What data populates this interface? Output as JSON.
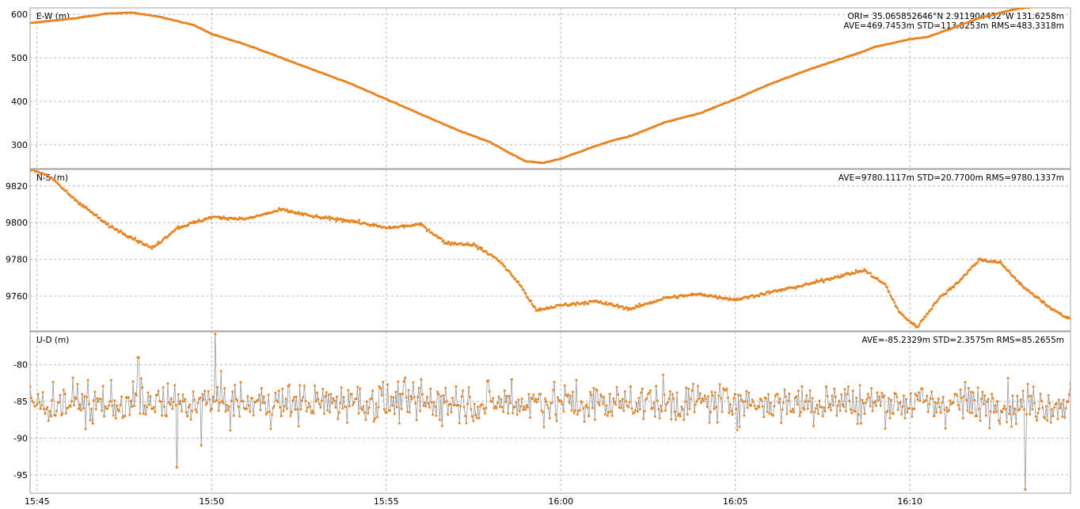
{
  "chart_data": [
    {
      "type": "line",
      "title": "",
      "ylabel": "E-W (m)",
      "stats": [
        "ORI= 35.065852646°N    2.911904452°W 131.6258m",
        "AVE=469.7453m STD=113.8253m RMS=483.3318m"
      ],
      "ylim": [
        245,
        615
      ],
      "yticks": [
        300,
        400,
        500,
        600
      ],
      "ytick_labels": [
        "300",
        "400",
        "500",
        "600"
      ],
      "series": [
        {
          "name": "E-W",
          "color": "#e8821e",
          "line_color": "#9a9a9a",
          "x": [
            -0.2,
            0,
            1,
            2,
            2.7,
            3.5,
            4.5,
            5,
            6,
            7,
            8,
            9,
            10,
            11,
            12,
            13,
            13.5,
            14,
            14.5,
            15,
            16,
            16.5,
            17,
            18,
            19,
            20,
            21,
            22,
            23,
            23.5,
            24,
            25,
            25.5,
            26,
            27,
            28,
            29,
            29.5
          ],
          "y": [
            580,
            582,
            590,
            602,
            604,
            595,
            575,
            555,
            530,
            500,
            470,
            440,
            405,
            370,
            335,
            305,
            282,
            262,
            258,
            268,
            297,
            310,
            320,
            352,
            373,
            405,
            440,
            470,
            497,
            510,
            525,
            543,
            548,
            562,
            592,
            612,
            622,
            625
          ]
        }
      ]
    },
    {
      "type": "line",
      "title": "",
      "ylabel": "N-S (m)",
      "stats": [
        "AVE=9780.1117m STD=20.7700m RMS=9780.1337m"
      ],
      "ylim": [
        9741,
        9829
      ],
      "yticks": [
        9760,
        9780,
        9800,
        9820
      ],
      "ytick_labels": [
        "9760",
        "9780",
        "9800",
        "9820"
      ],
      "series": [
        {
          "name": "N-S",
          "color": "#e8821e",
          "line_color": "#9a9a9a",
          "x": [
            -0.2,
            0.3,
            1,
            2,
            2.6,
            3.3,
            4,
            5,
            6,
            7,
            8,
            9,
            10,
            11,
            11.7,
            12.5,
            13.2,
            13.8,
            14.3,
            15,
            16,
            17,
            18,
            19,
            20,
            21,
            22,
            23,
            23.7,
            24.3,
            24.7,
            25.2,
            25.8,
            26.4,
            27,
            27.6,
            28.3,
            29,
            29.5
          ],
          "y": [
            9829,
            9826,
            9814,
            9799,
            9793,
            9786,
            9797,
            9803,
            9802,
            9807,
            9803,
            9801,
            9797,
            9799,
            9789,
            9788,
            9780,
            9767,
            9752,
            9755,
            9757,
            9753,
            9759,
            9761,
            9758,
            9762,
            9766,
            9771,
            9774,
            9766,
            9751,
            9743,
            9758,
            9768,
            9780,
            9778,
            9764,
            9754,
            9748
          ]
        }
      ]
    },
    {
      "type": "line",
      "title": "",
      "ylabel": "U-D (m)",
      "stats": [
        "AVE=-85.2329m STD=2.3575m RMS=85.2655m"
      ],
      "xlabel": "",
      "ylim": [
        -97.5,
        -75.5
      ],
      "yticks": [
        -95,
        -90,
        -85,
        -80
      ],
      "ytick_labels": [
        "-95",
        "-90",
        "-85",
        "-80"
      ],
      "x_range": [
        -0.2,
        29.6
      ],
      "xticks": [
        0,
        5,
        10,
        15,
        20,
        25
      ],
      "xtick_labels": [
        "15:45",
        "15:50",
        "15:55",
        "16:00",
        "16:05",
        "16:10"
      ],
      "series": [
        {
          "name": "U-D",
          "color": "#e8821e",
          "line_color": "#9a9a9a",
          "x": [
            -0.2,
            0.1,
            0.4,
            0.8,
            1.2,
            1.6,
            2.1,
            2.5,
            2.9,
            3.3,
            3.7,
            4.0,
            4.3,
            4.7,
            5.0,
            5.1,
            5.3,
            6,
            7,
            8,
            9,
            9.8,
            10.4,
            11,
            11.5,
            12,
            12.8,
            13.6,
            14.4,
            15,
            15.8,
            16.4,
            17,
            17.6,
            18.2,
            18.9,
            19.4,
            20,
            20.6,
            21.2,
            22,
            22.6,
            23.2,
            23.6,
            24,
            24.6,
            25.1,
            25.7,
            26.3,
            26.9,
            27.5,
            28,
            28.3,
            28.7,
            29.1,
            29.5
          ],
          "y": [
            -83,
            -86,
            -87,
            -84,
            -86,
            -88,
            -85,
            -87,
            -79,
            -86,
            -87,
            -94,
            -87,
            -91,
            -86,
            -75.8,
            -85,
            -86,
            -87,
            -85,
            -84,
            -83,
            -84,
            -82,
            -84,
            -83,
            -86,
            -82,
            -84,
            -85,
            -87,
            -84,
            -83,
            -86,
            -84,
            -85,
            -86,
            -84,
            -86,
            -84,
            -85,
            -83,
            -84,
            -88,
            -85,
            -84,
            -86,
            -87,
            -84,
            -87,
            -85,
            -86,
            -97,
            -86,
            -87,
            -85
          ]
        }
      ]
    }
  ]
}
